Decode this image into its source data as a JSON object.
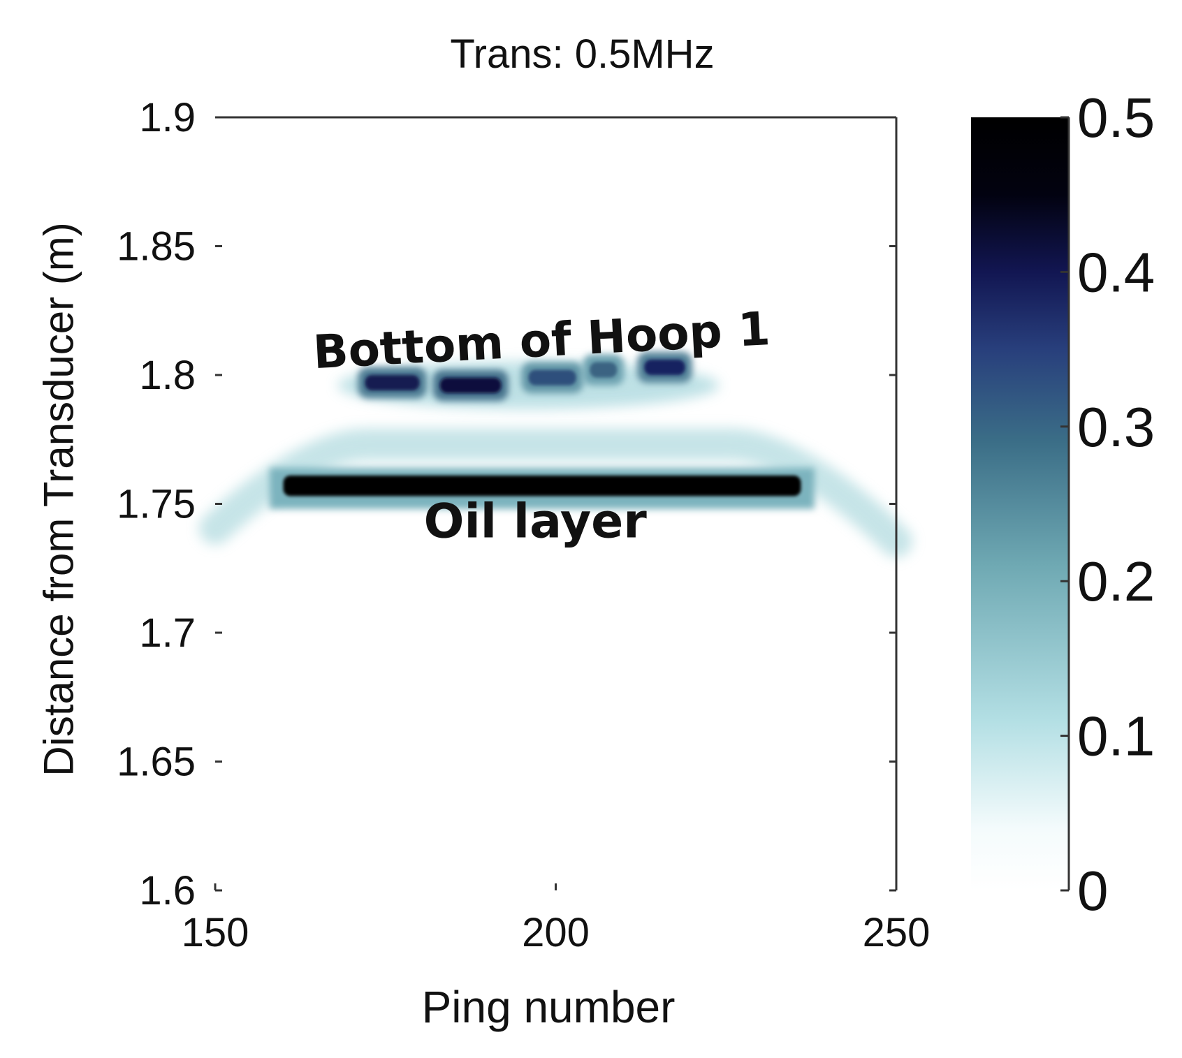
{
  "chart_data": {
    "type": "heatmap",
    "title": "Trans: 0.5MHz",
    "xlabel": "Ping number",
    "ylabel": "Distance from Transducer (m)",
    "xlim": [
      150,
      250
    ],
    "ylim": [
      1.6,
      1.9
    ],
    "xticks": [
      "150",
      "200",
      "250"
    ],
    "yticks": [
      "1.6",
      "1.65",
      "1.7",
      "1.75",
      "1.8",
      "1.85",
      "1.9"
    ],
    "grid": false,
    "colorbar": {
      "range": [
        0,
        0.5
      ],
      "ticks": [
        "0",
        "0.1",
        "0.2",
        "0.3",
        "0.4",
        "0.5"
      ],
      "colors": [
        "#ffffff",
        "#bfe6ea",
        "#6faab4",
        "#3a6e86",
        "#2a3f7a",
        "#141850",
        "#000000"
      ]
    },
    "annotations": [
      {
        "text": "Bottom of Hoop 1",
        "x": 198,
        "y": 1.81
      },
      {
        "text": "Oil layer",
        "x": 197,
        "y": 1.743
      }
    ],
    "features": [
      {
        "name": "oil-layer-band",
        "x_range": [
          160,
          236
        ],
        "y_center": 1.757,
        "value": 0.5
      },
      {
        "name": "hoop-bottom-echo",
        "x_range": [
          166,
          222
        ],
        "y_center": 1.798,
        "value": 0.38
      },
      {
        "name": "faint-arc",
        "x_range": [
          150,
          250
        ],
        "y_center": 1.765,
        "value": 0.12
      }
    ],
    "hoop_bottom_segments": [
      {
        "x": [
          172,
          180
        ],
        "y": 1.797,
        "value": 0.42
      },
      {
        "x": [
          183,
          192
        ],
        "y": 1.796,
        "value": 0.45
      },
      {
        "x": [
          196,
          203
        ],
        "y": 1.799,
        "value": 0.33
      },
      {
        "x": [
          205,
          209
        ],
        "y": 1.802,
        "value": 0.3
      },
      {
        "x": [
          213,
          219
        ],
        "y": 1.803,
        "value": 0.4
      }
    ]
  }
}
